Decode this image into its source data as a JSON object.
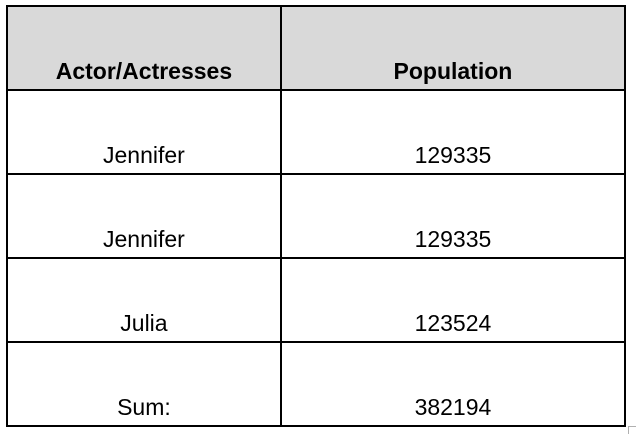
{
  "table": {
    "headers": [
      "Actor/Actresses",
      "Population"
    ],
    "rows": [
      [
        "Jennifer",
        "129335"
      ],
      [
        "Jennifer",
        "129335"
      ],
      [
        "Julia",
        "123524"
      ],
      [
        "Sum:",
        "382194"
      ]
    ]
  },
  "colors": {
    "header_background": "#d9d9d9",
    "border": "#000000",
    "cell_background": "#ffffff"
  }
}
